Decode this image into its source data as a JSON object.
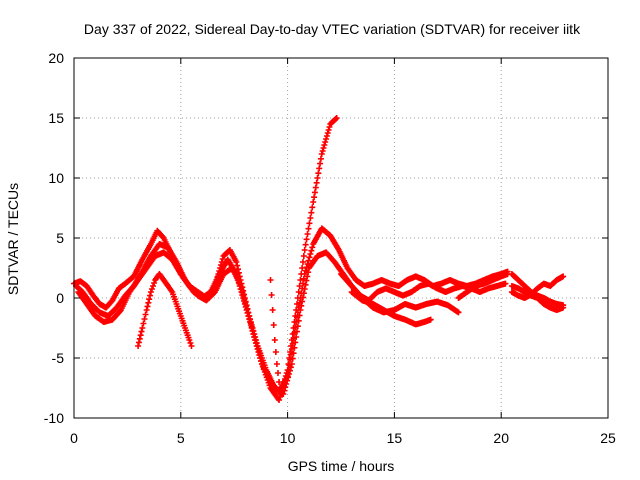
{
  "chart_data": {
    "type": "scatter",
    "title": "Day 337 of 2022, Sidereal Day-to-day VTEC variation (SDTVAR) for receiver iitk",
    "xlabel": "GPS time / hours",
    "ylabel": "SDTVAR / TECUs",
    "xlim": [
      0,
      25
    ],
    "ylim": [
      -10,
      20
    ],
    "xticks": [
      0,
      5,
      10,
      15,
      20,
      25
    ],
    "yticks": [
      -10,
      -5,
      0,
      5,
      10,
      15,
      20
    ],
    "xtick_labels": [
      "0",
      "5",
      "10",
      "15",
      "20",
      "25"
    ],
    "ytick_labels": [
      "-10",
      "-5",
      "0",
      "5",
      "10",
      "15",
      "20"
    ],
    "grid": true,
    "grid_style": "dotted",
    "marker": "plus",
    "color": "#ff0000",
    "series": [
      {
        "x": [
          0.0,
          0.3,
          0.6,
          0.9,
          1.2,
          1.5,
          1.8,
          2.1,
          2.4,
          2.8,
          3.2,
          3.6,
          3.9,
          4.2,
          4.6,
          5.0,
          5.4,
          5.8,
          6.2,
          6.6,
          7.0,
          7.3,
          7.6,
          8.0,
          8.4,
          8.8,
          9.2,
          9.6,
          10.0,
          10.4,
          10.8,
          11.2,
          11.6,
          12.0,
          12.3
        ],
        "y": [
          1.2,
          1.4,
          1.0,
          0.2,
          -0.5,
          -0.8,
          -0.2,
          0.8,
          1.2,
          1.8,
          3.2,
          4.5,
          5.6,
          5.0,
          3.5,
          2.0,
          1.0,
          0.5,
          0.0,
          1.0,
          3.5,
          4.0,
          3.0,
          0.0,
          -3.0,
          -5.5,
          -7.5,
          -8.5,
          -6.0,
          -1.0,
          4.0,
          8.0,
          12.0,
          14.5,
          15.0
        ]
      },
      {
        "x": [
          0.1,
          0.4,
          0.8,
          1.2,
          1.6,
          2.0,
          2.4,
          2.8,
          3.2,
          3.6,
          4.0,
          4.4,
          4.8,
          5.2,
          5.6,
          6.0,
          6.4,
          6.8,
          7.2,
          7.6,
          8.0,
          8.4,
          8.8,
          9.2,
          9.6,
          10.0,
          10.4,
          10.8,
          11.2,
          11.6,
          12.0,
          12.4,
          12.8,
          13.2,
          13.6,
          14.0,
          14.4,
          14.8,
          15.2,
          15.6,
          16.0,
          16.4,
          16.8,
          17.2,
          17.6,
          18.0,
          18.4,
          18.8,
          19.2,
          19.6,
          20.0,
          20.3
        ],
        "y": [
          1.0,
          0.5,
          -0.5,
          -1.2,
          -1.5,
          -0.8,
          0.2,
          1.0,
          2.2,
          3.5,
          4.5,
          4.2,
          3.0,
          1.5,
          0.5,
          0.0,
          0.5,
          2.0,
          3.2,
          2.0,
          -0.5,
          -3.0,
          -5.5,
          -7.0,
          -7.8,
          -6.5,
          -2.0,
          2.0,
          4.5,
          5.8,
          5.2,
          4.0,
          2.5,
          1.5,
          1.0,
          1.2,
          1.5,
          1.2,
          1.0,
          1.5,
          1.8,
          1.5,
          1.0,
          1.2,
          1.5,
          1.2,
          1.0,
          1.2,
          1.5,
          1.8,
          2.0,
          2.2
        ]
      },
      {
        "x": [
          0.2,
          0.6,
          1.0,
          1.4,
          1.8,
          2.2,
          2.6,
          3.0,
          3.4,
          3.8,
          4.2,
          4.6,
          5.0,
          5.4,
          5.8,
          6.2,
          6.6,
          7.0,
          7.4,
          7.8,
          8.2,
          8.6,
          9.0,
          9.4,
          9.8,
          10.2,
          10.6,
          11.0,
          11.4,
          11.8,
          12.2,
          12.6,
          13.0,
          13.4,
          13.8,
          14.2,
          14.6,
          15.0,
          15.4,
          15.8,
          16.2,
          16.6,
          17.0,
          17.4,
          17.8,
          18.2,
          18.6,
          19.0,
          19.4,
          19.8,
          20.2
        ],
        "y": [
          0.5,
          -0.5,
          -1.5,
          -2.0,
          -1.8,
          -1.0,
          0.5,
          1.5,
          2.5,
          3.5,
          3.8,
          3.2,
          2.0,
          1.0,
          0.2,
          -0.2,
          0.5,
          2.0,
          2.5,
          1.0,
          -1.5,
          -4.0,
          -6.0,
          -7.5,
          -8.0,
          -5.5,
          -1.0,
          2.5,
          3.5,
          3.8,
          3.0,
          2.0,
          1.0,
          0.2,
          -0.2,
          0.5,
          0.8,
          0.5,
          0.2,
          0.5,
          1.0,
          1.2,
          0.8,
          0.5,
          0.8,
          1.0,
          0.8,
          0.5,
          0.8,
          1.0,
          1.2
        ]
      },
      {
        "x": [
          3.0,
          3.2,
          3.4,
          3.6,
          3.8,
          4.0,
          4.2,
          4.4,
          4.6,
          4.8,
          5.0,
          5.2,
          5.4,
          5.5
        ],
        "y": [
          -4.0,
          -2.5,
          -1.0,
          0.5,
          1.5,
          2.0,
          1.5,
          1.0,
          0.5,
          -0.5,
          -1.5,
          -2.5,
          -3.5,
          -4.0
        ]
      },
      {
        "x": [
          9.2,
          9.3,
          9.4,
          9.5,
          9.6,
          9.7
        ],
        "y": [
          1.5,
          -1.0,
          -3.5,
          -5.5,
          -7.0,
          -8.0
        ]
      },
      {
        "x": [
          12.5,
          13.0,
          13.5,
          14.0,
          14.5,
          15.0,
          15.5,
          16.0,
          16.5,
          17.0,
          17.5,
          18.0
        ],
        "y": [
          2.0,
          1.0,
          0.0,
          -0.8,
          -1.2,
          -1.0,
          -0.5,
          -0.8,
          -0.5,
          -0.3,
          -0.6,
          -1.2
        ]
      },
      {
        "x": [
          13.0,
          13.5,
          14.0,
          14.5,
          15.0,
          15.5,
          16.0,
          16.4,
          16.7
        ],
        "y": [
          0.5,
          -0.2,
          -0.5,
          -1.0,
          -1.5,
          -1.8,
          -2.2,
          -2.0,
          -1.8
        ]
      },
      {
        "x": [
          20.5,
          20.8,
          21.1,
          21.4,
          21.7,
          22.0,
          22.3,
          22.6,
          22.9
        ],
        "y": [
          2.0,
          1.5,
          1.0,
          0.5,
          0.2,
          0.0,
          -0.3,
          -0.5,
          -0.6
        ]
      },
      {
        "x": [
          20.5,
          20.8,
          21.1,
          21.4,
          21.7,
          22.0,
          22.3,
          22.6,
          22.9
        ],
        "y": [
          1.0,
          0.8,
          0.5,
          0.2,
          0.0,
          -0.5,
          -0.8,
          -1.0,
          -0.8
        ]
      },
      {
        "x": [
          20.5,
          20.8,
          21.1,
          21.4,
          21.7,
          22.0,
          22.3,
          22.6,
          22.9
        ],
        "y": [
          0.5,
          0.2,
          0.0,
          0.3,
          0.8,
          1.2,
          1.0,
          1.5,
          1.8
        ]
      },
      {
        "x": [
          18.0,
          18.4,
          18.8,
          19.2,
          19.6,
          20.0,
          20.3
        ],
        "y": [
          0.0,
          0.5,
          1.0,
          1.2,
          1.5,
          1.8,
          2.0
        ]
      }
    ]
  }
}
